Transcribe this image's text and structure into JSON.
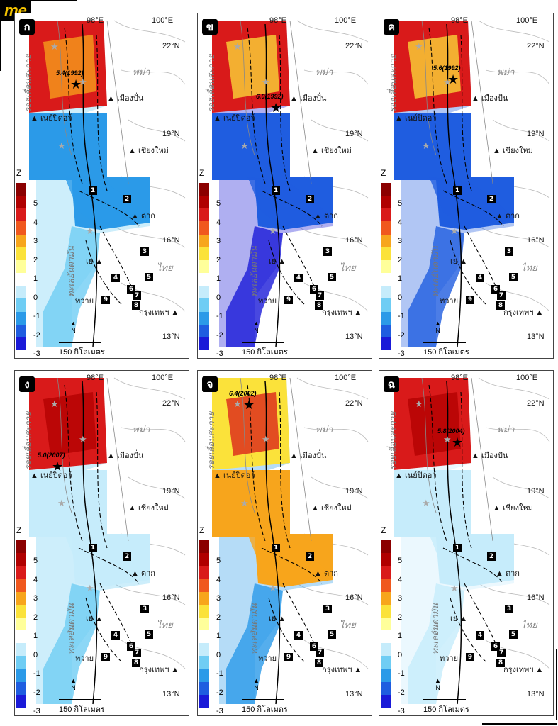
{
  "logo": "me",
  "common": {
    "lon1": "98°E",
    "lon2": "100°E",
    "lat22": "22°N",
    "lat19": "19°N",
    "lat16": "16°N",
    "lat13": "13°N",
    "country1": "พม่า",
    "country2": "ไทย",
    "fault1": "รอยเลื่อนสะกาย",
    "fault2": "ทะเลอันดามัน",
    "c_mongpan": "▲ เมืองปั่น",
    "c_meiktila": "▲ เนย์ปิดอว์",
    "c_chiangmai": "▲ เชียงใหม่",
    "c_tak": "▲ ตาก",
    "c_ye": "เย ▲",
    "c_tavoy": "ทวาย",
    "c_bangkok": "กรุงเทพฯ ▲",
    "scale": "150 กิโลเมตร",
    "north": "N",
    "zlabel": "Z",
    "ticks": [
      "5",
      "4",
      "3",
      "2",
      "1",
      "0",
      "-1",
      "-2",
      "-3"
    ],
    "badges": [
      "1",
      "2",
      "3",
      "4",
      "5",
      "6",
      "7",
      "8",
      "9"
    ]
  },
  "colorbar": [
    "#8b0000",
    "#b00000",
    "#d91a1a",
    "#f0581e",
    "#f7a51c",
    "#fbe23a",
    "#ffff9a",
    "#ffffff",
    "#c6ecfb",
    "#6fcdf4",
    "#2b9ae8",
    "#1f5de0",
    "#1a1ad8"
  ],
  "panels": [
    {
      "label": "ก",
      "event": "5.4(1992)"
    },
    {
      "label": "ข",
      "event": "6.0(1992)"
    },
    {
      "label": "ค",
      "event": "5.6(1992)"
    },
    {
      "label": "ง",
      "event": "5.0(2007)"
    },
    {
      "label": "จ",
      "event": "6.4(2002)"
    },
    {
      "label": "ฉ",
      "event": "5.8(2004)"
    }
  ]
}
